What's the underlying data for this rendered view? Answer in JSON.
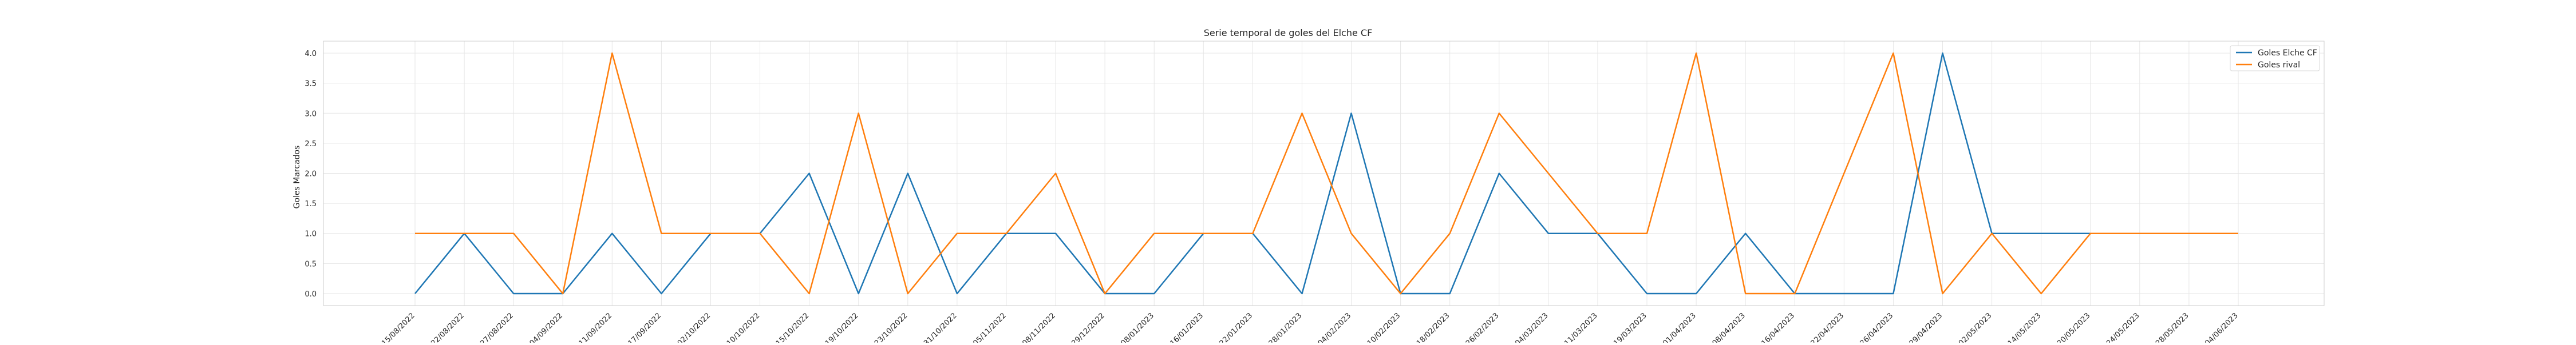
{
  "chart_data": {
    "type": "line",
    "title": "Serie temporal de goles del Elche CF",
    "xlabel": "",
    "ylabel": "Goles Marcados",
    "ylim": [
      -0.2,
      4.2
    ],
    "yticks": [
      "0.0",
      "0.5",
      "1.0",
      "1.5",
      "2.0",
      "2.5",
      "3.0",
      "3.5",
      "4.0"
    ],
    "grid": true,
    "legend_position": "top-right",
    "categories": [
      "15/08/2022",
      "22/08/2022",
      "27/08/2022",
      "04/09/2022",
      "11/09/2022",
      "17/09/2022",
      "02/10/2022",
      "10/10/2022",
      "15/10/2022",
      "19/10/2022",
      "23/10/2022",
      "31/10/2022",
      "05/11/2022",
      "08/11/2022",
      "29/12/2022",
      "08/01/2023",
      "16/01/2023",
      "22/01/2023",
      "28/01/2023",
      "04/02/2023",
      "10/02/2023",
      "18/02/2023",
      "26/02/2023",
      "04/03/2023",
      "11/03/2023",
      "19/03/2023",
      "01/04/2023",
      "08/04/2023",
      "16/04/2023",
      "22/04/2023",
      "26/04/2023",
      "29/04/2023",
      "02/05/2023",
      "14/05/2023",
      "20/05/2023",
      "24/05/2023",
      "28/05/2023",
      "04/06/2023"
    ],
    "series": [
      {
        "name": "Goles Elche CF",
        "color": "#1f77b4",
        "values": [
          0,
          1,
          0,
          0,
          1,
          0,
          1,
          1,
          2,
          0,
          2,
          0,
          1,
          1,
          0,
          0,
          1,
          1,
          0,
          3,
          0,
          0,
          2,
          1,
          1,
          0,
          0,
          1,
          0,
          0,
          0,
          4,
          1,
          1,
          1,
          null,
          null,
          null
        ]
      },
      {
        "name": "Goles rival",
        "color": "#ff7f0e",
        "values": [
          1,
          1,
          1,
          0,
          4,
          1,
          1,
          1,
          0,
          3,
          0,
          1,
          1,
          2,
          0,
          1,
          1,
          1,
          3,
          1,
          0,
          1,
          3,
          2,
          1,
          1,
          4,
          0,
          0,
          null,
          4,
          0,
          1,
          0,
          1,
          1,
          1,
          1
        ]
      }
    ]
  }
}
